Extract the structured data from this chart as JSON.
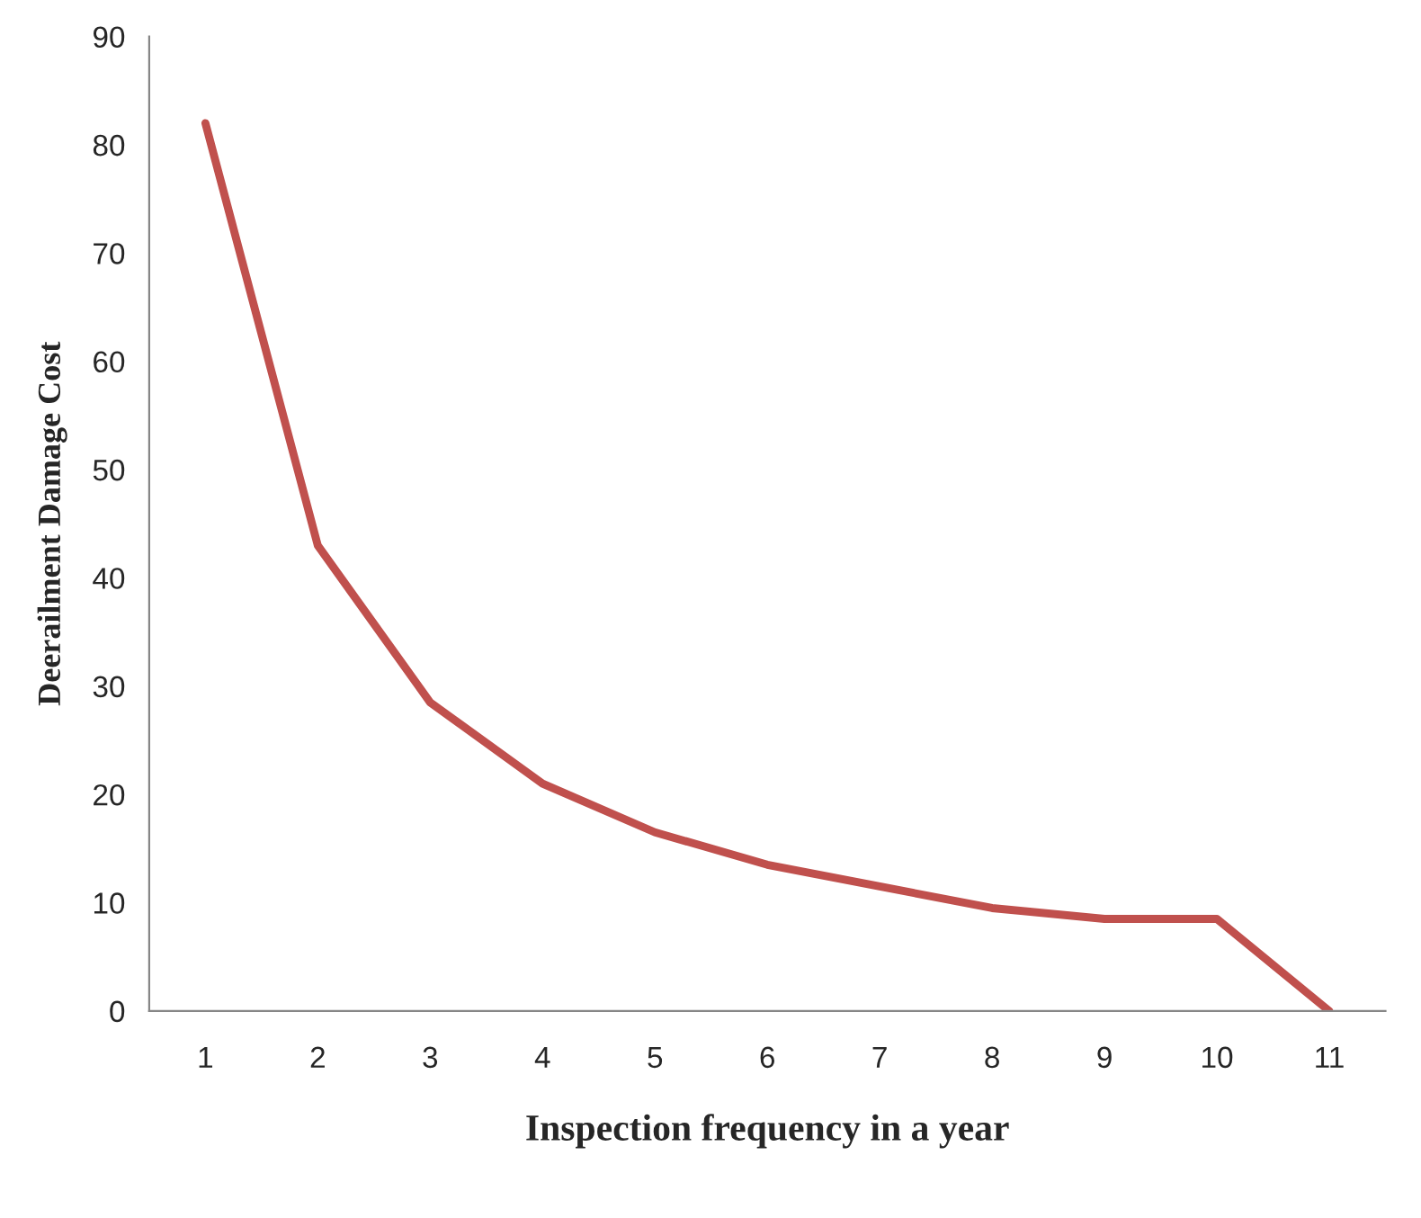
{
  "chart_data": {
    "type": "line",
    "xlabel": "Inspection frequency in a year",
    "ylabel": "Deerailment Damage Cost",
    "categories": [
      "1",
      "2",
      "3",
      "4",
      "5",
      "6",
      "7",
      "8",
      "9",
      "10",
      "11"
    ],
    "series": [
      {
        "color": "#c0504d",
        "values": [
          82,
          43,
          28.5,
          21,
          16.5,
          13.5,
          11.5,
          9.5,
          8.5,
          8.5,
          0
        ]
      }
    ],
    "ylim": [
      0,
      90
    ],
    "yticks": [
      0,
      10,
      20,
      30,
      40,
      50,
      60,
      70,
      80,
      90
    ],
    "grid": false,
    "legend": false,
    "marker": "none",
    "line_style": "solid"
  }
}
